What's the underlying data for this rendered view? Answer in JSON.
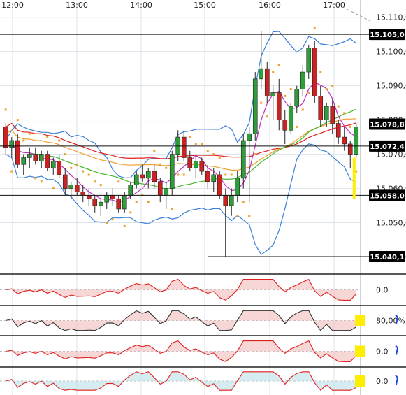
{
  "chart_data": {
    "type": "candlestick",
    "x_ticks": [
      "12:00",
      "13:00",
      "14:00",
      "15:00",
      "16:00",
      "17:00"
    ],
    "price_ticks": [
      "15.110,0",
      "15.100,0",
      "15.090,0",
      "15.080,0",
      "15.070,0",
      "15.060,0",
      "15.050,0",
      "15.040,0"
    ],
    "price_range": [
      15035,
      15113
    ],
    "level_labels": [
      {
        "text": "15.105,0",
        "price": 15105.0
      },
      {
        "text": "15.078,8",
        "price": 15078.8
      },
      {
        "text": "15.072,4",
        "price": 15072.4
      },
      {
        "text": "15.058,0",
        "price": 15058.0
      },
      {
        "text": "15.040,1",
        "price": 15040.1
      }
    ],
    "candles": [
      [
        15078,
        15079,
        15070,
        15072
      ],
      [
        15072,
        15075,
        15069,
        15074
      ],
      [
        15074,
        15076,
        15066,
        15067
      ],
      [
        15067,
        15070,
        15064,
        15069
      ],
      [
        15069,
        15072,
        15066,
        15070
      ],
      [
        15070,
        15072,
        15067,
        15068
      ],
      [
        15068,
        15071,
        15066,
        15070
      ],
      [
        15070,
        15071,
        15065,
        15066
      ],
      [
        15066,
        15069,
        15064,
        15068
      ],
      [
        15068,
        15070,
        15063,
        15064
      ],
      [
        15064,
        15066,
        15058,
        15060
      ],
      [
        15060,
        15062,
        15057,
        15061
      ],
      [
        15061,
        15063,
        15058,
        15059
      ],
      [
        15059,
        15061,
        15056,
        15058
      ],
      [
        15058,
        15060,
        15055,
        15057
      ],
      [
        15057,
        15058,
        15053,
        15055
      ],
      [
        15055,
        15057,
        15052,
        15056
      ],
      [
        15056,
        15059,
        15054,
        15058
      ],
      [
        15058,
        15060,
        15055,
        15057
      ],
      [
        15057,
        15058,
        15053,
        15054
      ],
      [
        15054,
        15059,
        15053,
        15058
      ],
      [
        15058,
        15062,
        15057,
        15061
      ],
      [
        15061,
        15065,
        15060,
        15064
      ],
      [
        15064,
        15067,
        15062,
        15063
      ],
      [
        15063,
        15066,
        15060,
        15065
      ],
      [
        15065,
        15067,
        15060,
        15062
      ],
      [
        15062,
        15063,
        15056,
        15058
      ],
      [
        15058,
        15062,
        15054,
        15060
      ],
      [
        15060,
        15071,
        15058,
        15070
      ],
      [
        15070,
        15077,
        15068,
        15075
      ],
      [
        15075,
        15077,
        15068,
        15069
      ],
      [
        15069,
        15071,
        15065,
        15066
      ],
      [
        15066,
        15069,
        15063,
        15068
      ],
      [
        15068,
        15069,
        15064,
        15065
      ],
      [
        15065,
        15067,
        15060,
        15062
      ],
      [
        15062,
        15066,
        15059,
        15064
      ],
      [
        15064,
        15065,
        15057,
        15058
      ],
      [
        15058,
        15060,
        15040,
        15055
      ],
      [
        15055,
        15060,
        15052,
        15058
      ],
      [
        15058,
        15065,
        15056,
        15063
      ],
      [
        15063,
        15076,
        15060,
        15074
      ],
      [
        15074,
        15078,
        15056,
        15076
      ],
      [
        15076,
        15094,
        15074,
        15092
      ],
      [
        15092,
        15106,
        15089,
        15095
      ],
      [
        15095,
        15097,
        15085,
        15087
      ],
      [
        15087,
        15090,
        15080,
        15088
      ],
      [
        15088,
        15092,
        15077,
        15080
      ],
      [
        15080,
        15083,
        15073,
        15077
      ],
      [
        15077,
        15085,
        15076,
        15084
      ],
      [
        15084,
        15090,
        15082,
        15089
      ],
      [
        15089,
        15096,
        15087,
        15094
      ],
      [
        15094,
        15102,
        15092,
        15101
      ],
      [
        15101,
        15103,
        15085,
        15087
      ],
      [
        15087,
        15090,
        15078,
        15080
      ],
      [
        15080,
        15085,
        15078,
        15084
      ],
      [
        15084,
        15086,
        15076,
        15079
      ],
      [
        15079,
        15080,
        15073,
        15075
      ],
      [
        15075,
        15078,
        15071,
        15073
      ],
      [
        15073,
        15074,
        15066,
        15070
      ],
      [
        15070,
        15079,
        15069,
        15078
      ]
    ],
    "oscillators": [
      {
        "right_label": "0,0"
      },
      {
        "right_label": "80,00%"
      },
      {
        "right_label": "0,0"
      },
      {
        "right_label": "0,0"
      }
    ]
  },
  "colors": {
    "bull": "#2f9e3a",
    "bear": "#cc2222",
    "bb": "#3a7fd8",
    "ma_red": "#e02020",
    "ma_orange": "#f0a030",
    "ma_green": "#44b82a",
    "ma_magenta": "#c030c0",
    "sar": "#f0a030",
    "grid": "#dde3ea",
    "label_box": "#000000",
    "highlight": "#ffee00"
  }
}
